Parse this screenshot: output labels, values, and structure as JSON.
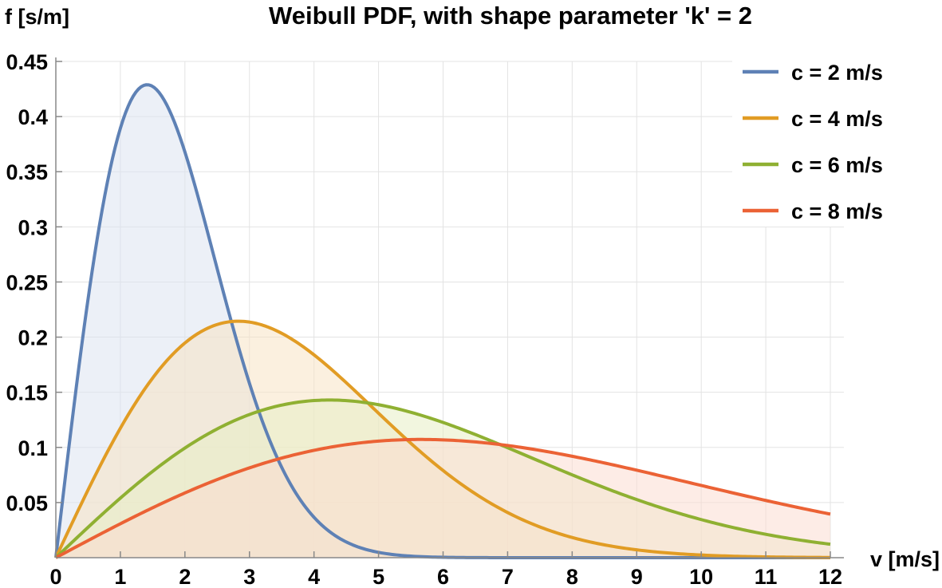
{
  "chart_data": {
    "type": "line",
    "title": "Weibull PDF, with shape parameter 'k' = 2",
    "xlabel": "v [m/s]",
    "ylabel": "f [s/m]",
    "shape_k": 2,
    "xlim": [
      0,
      12
    ],
    "ylim": [
      0,
      0.45
    ],
    "x_ticks": [
      "0",
      "1",
      "2",
      "3",
      "4",
      "5",
      "6",
      "7",
      "8",
      "9",
      "10",
      "11",
      "12"
    ],
    "y_ticks": [
      "0.05",
      "0.1",
      "0.15",
      "0.2",
      "0.25",
      "0.3",
      "0.35",
      "0.4",
      "0.45"
    ],
    "grid": true,
    "filled": true,
    "legend_position": "top-right",
    "series": [
      {
        "name": "c = 2 m/s",
        "c": 2,
        "color": "#5E81B5",
        "fill": "#DDE4F0",
        "x": [
          0,
          0.5,
          1,
          1.41,
          2,
          2.5,
          3,
          3.5,
          4,
          5,
          6,
          7,
          8,
          9,
          10,
          11,
          12
        ],
        "values": [
          0,
          0.2213,
          0.3894,
          0.4289,
          0.3679,
          0.262,
          0.1581,
          0.0821,
          0.0366,
          0.0048,
          0.0004,
          0,
          0,
          0,
          0,
          0,
          0
        ]
      },
      {
        "name": "c = 4 m/s",
        "c": 4,
        "color": "#E19C24",
        "fill": "#F7E3C4",
        "x": [
          0,
          1,
          2,
          2.83,
          3,
          4,
          5,
          6,
          7,
          8,
          9,
          10,
          11,
          12
        ],
        "values": [
          0,
          0.1174,
          0.1947,
          0.2144,
          0.2138,
          0.1839,
          0.131,
          0.0791,
          0.0407,
          0.0183,
          0.0071,
          0.0024,
          0.0007,
          0.0002
        ]
      },
      {
        "name": "c = 6 m/s",
        "c": 6,
        "color": "#8FB032",
        "fill": "#E8EFC5",
        "x": [
          0,
          1,
          2,
          3,
          4,
          4.24,
          5,
          6,
          7,
          8,
          9,
          10,
          11,
          12
        ],
        "values": [
          0,
          0.054,
          0.1,
          0.1298,
          0.1425,
          0.143,
          0.1384,
          0.1226,
          0.1,
          0.0754,
          0.0527,
          0.0346,
          0.0212,
          0.0122
        ]
      },
      {
        "name": "c = 8 m/s",
        "c": 8,
        "color": "#EB6235",
        "fill": "#FBDCD2",
        "x": [
          0,
          1,
          2,
          3,
          4,
          5,
          5.66,
          6,
          7,
          8,
          9,
          10,
          11,
          12
        ],
        "values": [
          0,
          0.0308,
          0.0588,
          0.0815,
          0.0974,
          0.1059,
          0.1072,
          0.1068,
          0.1018,
          0.092,
          0.0794,
          0.0655,
          0.052,
          0.0395
        ]
      }
    ]
  }
}
